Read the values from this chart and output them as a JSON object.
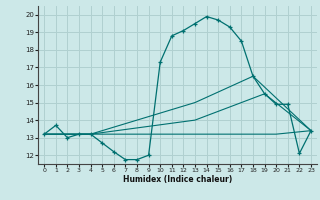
{
  "bg_color": "#cce8e8",
  "grid_color": "#b0d0d0",
  "line_color": "#007070",
  "xlabel": "Humidex (Indice chaleur)",
  "xlim": [
    -0.5,
    23.5
  ],
  "ylim": [
    11.5,
    20.5
  ],
  "xticks": [
    0,
    1,
    2,
    3,
    4,
    5,
    6,
    7,
    8,
    9,
    10,
    11,
    12,
    13,
    14,
    15,
    16,
    17,
    18,
    19,
    20,
    21,
    22,
    23
  ],
  "yticks": [
    12,
    13,
    14,
    15,
    16,
    17,
    18,
    19,
    20
  ],
  "curve1_x": [
    0,
    1,
    2,
    3,
    4,
    5,
    6,
    7,
    8,
    9,
    10,
    11,
    12,
    13,
    14,
    15,
    16,
    17,
    18,
    19,
    20,
    21,
    22,
    23
  ],
  "curve1_y": [
    13.2,
    13.7,
    13.0,
    13.2,
    13.2,
    12.7,
    12.2,
    11.75,
    11.75,
    12.0,
    17.3,
    18.8,
    19.1,
    19.5,
    19.9,
    19.7,
    19.3,
    18.5,
    16.5,
    15.5,
    14.9,
    14.9,
    12.1,
    13.4
  ],
  "curve2_x": [
    0,
    4,
    13,
    18,
    23
  ],
  "curve2_y": [
    13.2,
    13.2,
    15.0,
    16.5,
    13.4
  ],
  "curve3_x": [
    0,
    4,
    13,
    19,
    23
  ],
  "curve3_y": [
    13.2,
    13.2,
    14.0,
    15.5,
    13.4
  ],
  "curve4_x": [
    0,
    20,
    23
  ],
  "curve4_y": [
    13.2,
    13.2,
    13.4
  ]
}
